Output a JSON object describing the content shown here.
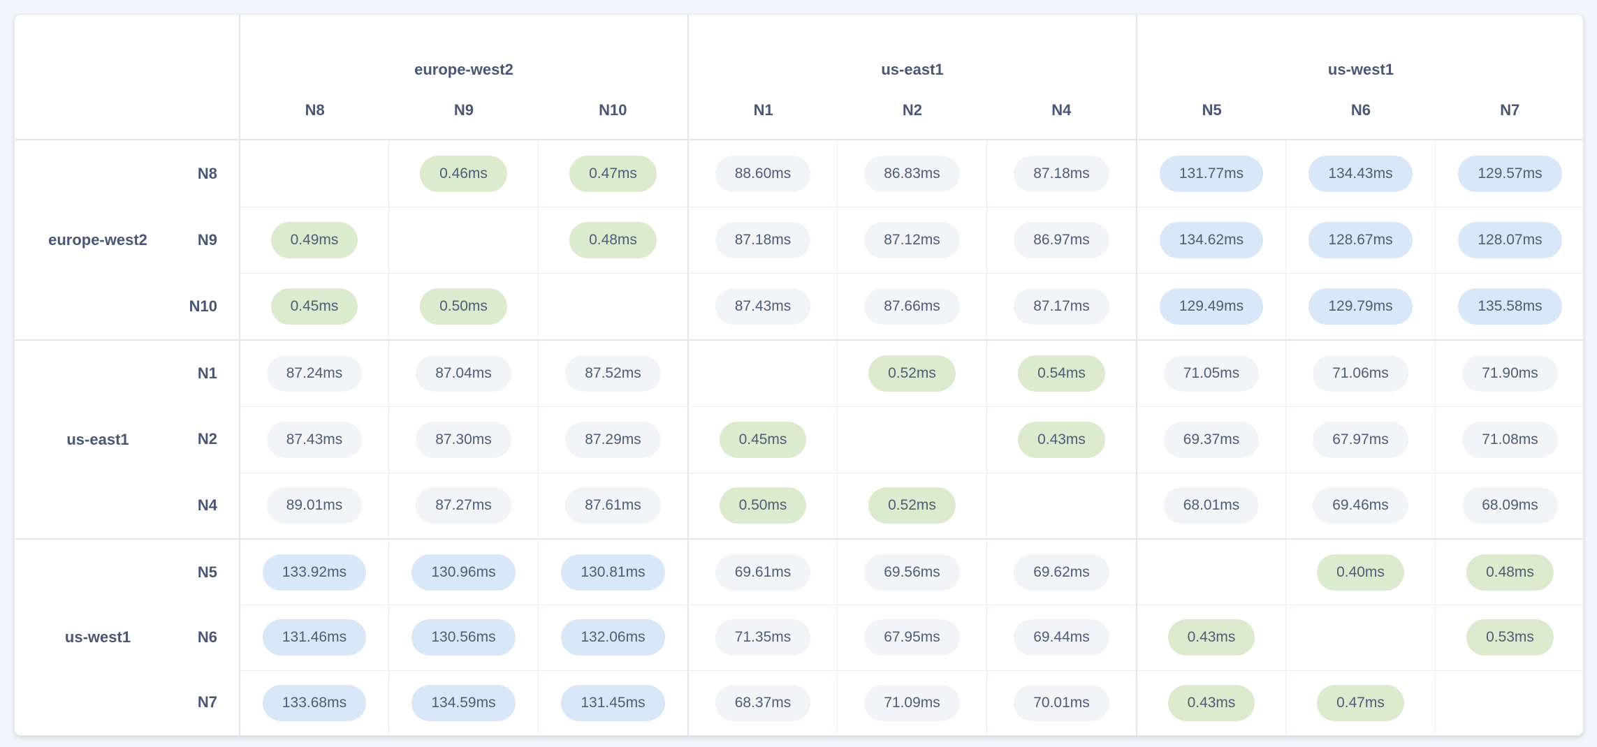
{
  "page": {
    "background_color": "#f2f5f9",
    "card_background": "#ffffff",
    "card_border_color": "#e6e9f0",
    "group_line_color": "#e2e6ee",
    "inner_line_color": "#eaeef4",
    "label_text_color": "#4a5772",
    "value_text_color": "#4e5d76"
  },
  "chart_data": {
    "type": "heatmap",
    "title": "",
    "unit": "ms",
    "legend": "none",
    "column_groups": [
      {
        "label": "europe-west2",
        "nodes": [
          "N8",
          "N9",
          "N10"
        ]
      },
      {
        "label": "us-east1",
        "nodes": [
          "N1",
          "N2",
          "N4"
        ]
      },
      {
        "label": "us-west1",
        "nodes": [
          "N5",
          "N6",
          "N7"
        ]
      }
    ],
    "row_groups": [
      {
        "label": "europe-west2",
        "rows": [
          {
            "node": "N8",
            "cells": [
              "",
              "0.46ms",
              "0.47ms",
              "88.60ms",
              "86.83ms",
              "87.18ms",
              "131.77ms",
              "134.43ms",
              "129.57ms"
            ]
          },
          {
            "node": "N9",
            "cells": [
              "0.49ms",
              "",
              "0.48ms",
              "87.18ms",
              "87.12ms",
              "86.97ms",
              "134.62ms",
              "128.67ms",
              "128.07ms"
            ]
          },
          {
            "node": "N10",
            "cells": [
              "0.45ms",
              "0.50ms",
              "",
              "87.43ms",
              "87.66ms",
              "87.17ms",
              "129.49ms",
              "129.79ms",
              "135.58ms"
            ]
          }
        ]
      },
      {
        "label": "us-east1",
        "rows": [
          {
            "node": "N1",
            "cells": [
              "87.24ms",
              "87.04ms",
              "87.52ms",
              "",
              "0.52ms",
              "0.54ms",
              "71.05ms",
              "71.06ms",
              "71.90ms"
            ]
          },
          {
            "node": "N2",
            "cells": [
              "87.43ms",
              "87.30ms",
              "87.29ms",
              "0.45ms",
              "",
              "0.43ms",
              "69.37ms",
              "67.97ms",
              "71.08ms"
            ]
          },
          {
            "node": "N4",
            "cells": [
              "89.01ms",
              "87.27ms",
              "87.61ms",
              "0.50ms",
              "0.52ms",
              "",
              "68.01ms",
              "69.46ms",
              "68.09ms"
            ]
          }
        ]
      },
      {
        "label": "us-west1",
        "rows": [
          {
            "node": "N5",
            "cells": [
              "133.92ms",
              "130.96ms",
              "130.81ms",
              "69.61ms",
              "69.56ms",
              "69.62ms",
              "",
              "0.40ms",
              "0.48ms"
            ]
          },
          {
            "node": "N6",
            "cells": [
              "131.46ms",
              "130.56ms",
              "132.06ms",
              "71.35ms",
              "67.95ms",
              "69.44ms",
              "0.43ms",
              "",
              "0.53ms"
            ]
          },
          {
            "node": "N7",
            "cells": [
              "133.68ms",
              "134.59ms",
              "131.45ms",
              "68.37ms",
              "71.09ms",
              "70.01ms",
              "0.43ms",
              "0.47ms",
              ""
            ]
          }
        ]
      }
    ],
    "color_scale": {
      "low": {
        "condition": "value < 1ms",
        "color": "#dcebce"
      },
      "mid": {
        "condition": "1ms - 100ms",
        "color": "#f2f4f8"
      },
      "high": {
        "condition": "value > 100ms",
        "color": "#d9e8f8"
      }
    }
  }
}
